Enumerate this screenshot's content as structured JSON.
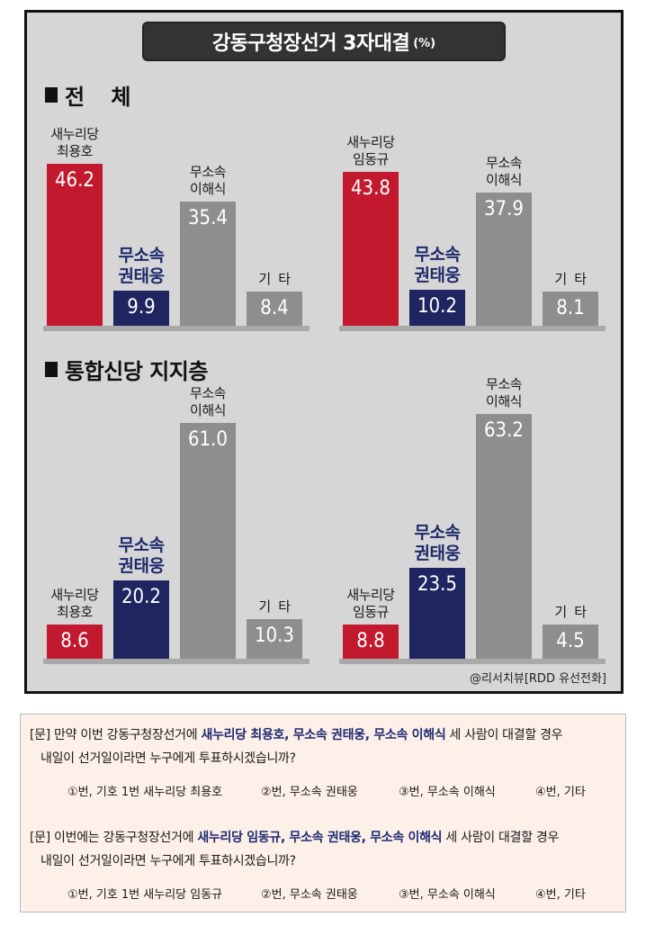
{
  "title": "강동구청장선거 3자대결",
  "title_unit": "(%)",
  "sections": [
    {
      "title": "전  체"
    },
    {
      "title": "통합신당 지지층"
    }
  ],
  "chart_data": {
    "type": "bar",
    "title": "강동구청장선거 3자대결",
    "unit": "(%)",
    "panels": [
      {
        "section": "전  체",
        "categories": [
          "새누리당\n최용호",
          "무소속\n권태웅",
          "무소속\n이해식",
          "기  타"
        ],
        "values": [
          46.2,
          9.9,
          35.4,
          8.4
        ]
      },
      {
        "section": "전  체",
        "categories": [
          "새누리당\n임동규",
          "무소속\n권태웅",
          "무소속\n이해식",
          "기  타"
        ],
        "values": [
          43.8,
          10.2,
          37.9,
          8.1
        ]
      },
      {
        "section": "통합신당 지지층",
        "categories": [
          "새누리당\n최용호",
          "무소속\n권태웅",
          "무소속\n이해식",
          "기  타"
        ],
        "values": [
          8.6,
          20.2,
          61.0,
          10.3
        ]
      },
      {
        "section": "통합신당 지지층",
        "categories": [
          "새누리당\n임동규",
          "무소속\n권태웅",
          "무소속\n이해식",
          "기  타"
        ],
        "values": [
          8.8,
          23.5,
          63.2,
          4.5
        ]
      }
    ],
    "value_labels": [
      [
        "46.2",
        "9.9",
        "35.4",
        "8.4"
      ],
      [
        "43.8",
        "10.2",
        "37.9",
        "8.1"
      ],
      [
        "8.6",
        "20.2",
        "61.0",
        "10.3"
      ],
      [
        "8.8",
        "23.5",
        "63.2",
        "4.5"
      ]
    ],
    "colors": [
      "#c3192e",
      "#1f2560",
      "#8e8e8e",
      "#8e8e8e"
    ],
    "grid": false,
    "legend": "none"
  },
  "source": "@리서치뷰[RDD 유선전화]",
  "survey": {
    "q1": {
      "prefix": "[문] 만약 이번 강동구청장선거에 ",
      "highlight": "새누리당 최용호, 무소속 권태웅, 무소속 이해식",
      "suffix": " 세 사람이 대결할 경우",
      "line2": "내일이 선거일이라면 누구에게 투표하시겠습니까?",
      "options": [
        "①번, 기호 1번 새누리당 최용호",
        "②번, 무소속 권태웅",
        "③번, 무소속 이해식",
        "④번, 기타"
      ]
    },
    "q2": {
      "prefix": "[문] 이번에는 강동구청장선거에 ",
      "highlight": "새누리당 임동규, 무소속 권태웅, 무소속 이해식",
      "suffix": " 세 사람이 대결할 경우",
      "line2": "내일이 선거일이라면 누구에게 투표하시겠습니까?",
      "options": [
        "①번, 기호 1번 새누리당 임동규",
        "②번, 무소속 권태웅",
        "③번, 무소속 이해식",
        "④번, 기타"
      ]
    }
  }
}
